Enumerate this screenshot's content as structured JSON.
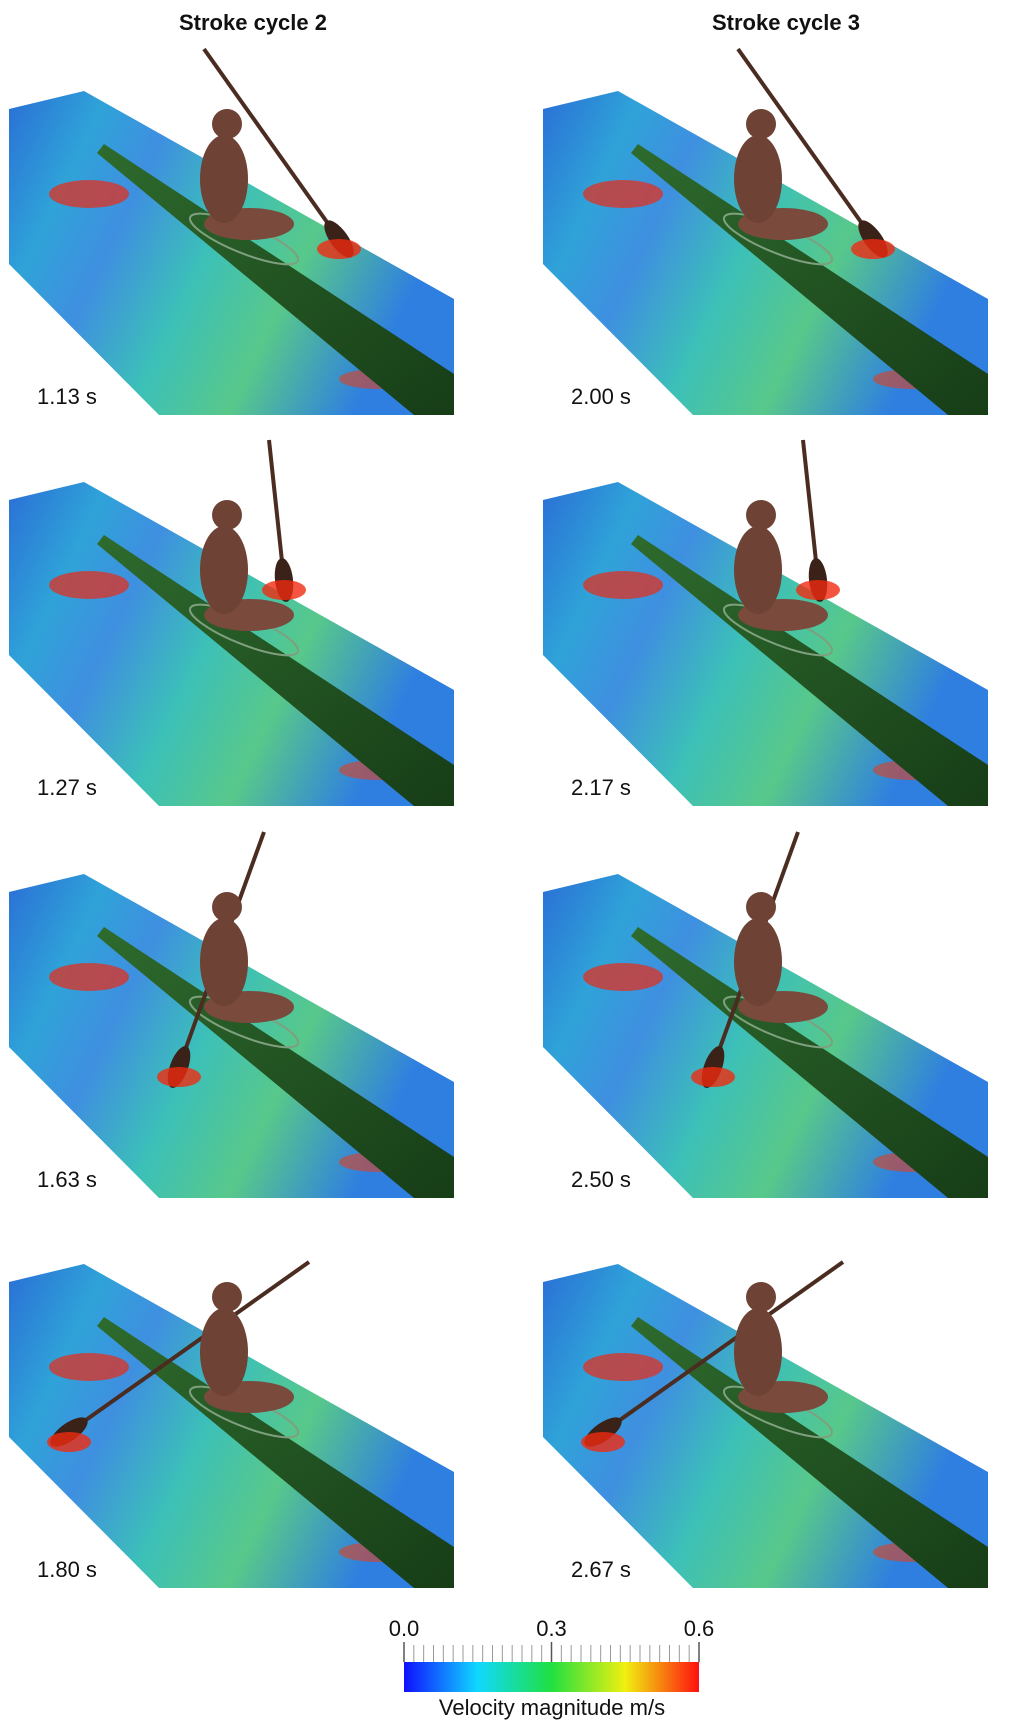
{
  "columns": [
    {
      "title": "Stroke cycle 2"
    },
    {
      "title": "Stroke cycle 3"
    }
  ],
  "panels": [
    {
      "time": "1.13 s"
    },
    {
      "time": "2.00 s"
    },
    {
      "time": "1.27 s"
    },
    {
      "time": "2.17 s"
    },
    {
      "time": "1.63 s"
    },
    {
      "time": "2.50 s"
    },
    {
      "time": "1.80 s"
    },
    {
      "time": "2.67 s"
    }
  ],
  "colorbar": {
    "lim": [
      0,
      0.6
    ],
    "ticks": [
      {
        "value": 0,
        "label": "0.0"
      },
      {
        "value": 0.3,
        "label": "0.3"
      },
      {
        "value": 0.6,
        "label": "0.6"
      }
    ],
    "label": "Velocity magnitude m/s"
  }
}
